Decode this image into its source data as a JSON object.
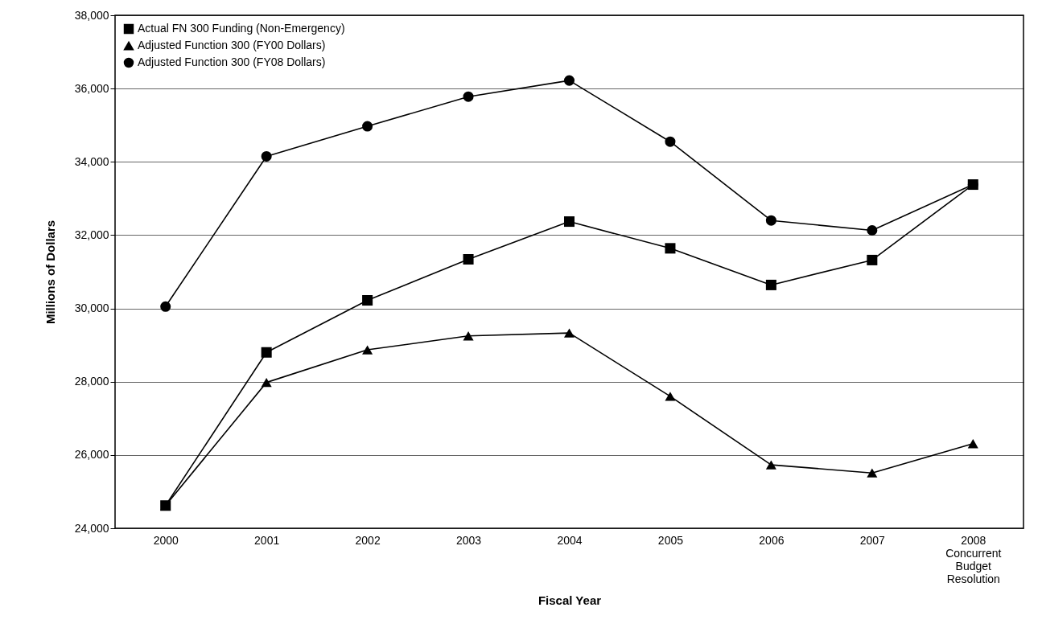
{
  "chart_data": {
    "type": "line",
    "xlabel": "Fiscal Year",
    "ylabel": "Millions of Dollars",
    "categories": [
      "2000",
      "2001",
      "2002",
      "2003",
      "2004",
      "2005",
      "2006",
      "2007",
      "2008 Concurrent Budget Resolution"
    ],
    "series": [
      {
        "name": "Actual FN 300 Funding (Non-Emergency)",
        "color": "#000000",
        "marker": "square",
        "values": [
          24620,
          28800,
          30220,
          31340,
          32370,
          31640,
          30640,
          31320,
          33380
        ]
      },
      {
        "name": "Adjusted Function 300 (FY00 Dollars)",
        "color": "#000000",
        "marker": "triangle",
        "values": [
          24620,
          27980,
          28870,
          29250,
          29330,
          27600,
          25730,
          25510,
          26310
        ]
      },
      {
        "name": "Adjusted Function 300 (FY08 Dollars)",
        "color": "#000000",
        "marker": "circle",
        "values": [
          30050,
          34150,
          34970,
          35780,
          36220,
          34550,
          32400,
          32130,
          33380
        ]
      }
    ],
    "ylim": [
      24000,
      38000
    ],
    "yticks": [
      {
        "value": 24000,
        "label": "24,000"
      },
      {
        "value": 26000,
        "label": "26,000"
      },
      {
        "value": 28000,
        "label": "28,000"
      },
      {
        "value": 30000,
        "label": "30,000"
      },
      {
        "value": 32000,
        "label": "32,000"
      },
      {
        "value": 34000,
        "label": "34,000"
      },
      {
        "value": 36000,
        "label": "36,000"
      },
      {
        "value": 38000,
        "label": "38,000"
      }
    ],
    "grid": "y",
    "legend": "top left",
    "line_style": "solid"
  }
}
